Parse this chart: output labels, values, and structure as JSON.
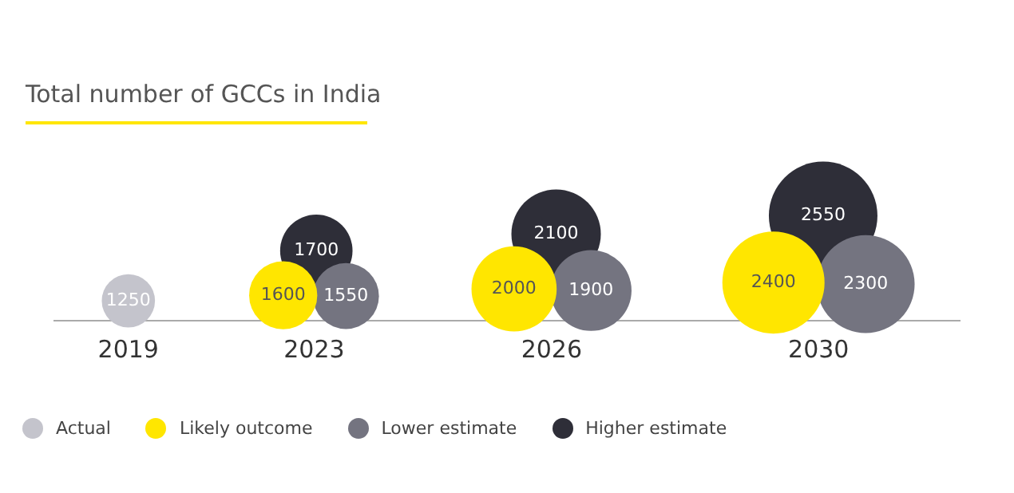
{
  "chart_data": {
    "type": "other",
    "title": "Total number of GCCs in India",
    "categories": [
      "2019",
      "2023",
      "2026",
      "2030"
    ],
    "series": [
      {
        "name": "Actual",
        "color": "#c4c4cc",
        "values": [
          1250,
          null,
          null,
          null
        ]
      },
      {
        "name": "Likely outcome",
        "color": "#ffe600",
        "values": [
          null,
          1600,
          2000,
          2400
        ]
      },
      {
        "name": "Lower estimate",
        "color": "#747480",
        "values": [
          null,
          1550,
          1900,
          2300
        ]
      },
      {
        "name": "Higher estimate",
        "color": "#2e2e38",
        "values": [
          null,
          1700,
          2100,
          2550
        ]
      }
    ],
    "data_labels": true,
    "legend": "bottom left"
  }
}
